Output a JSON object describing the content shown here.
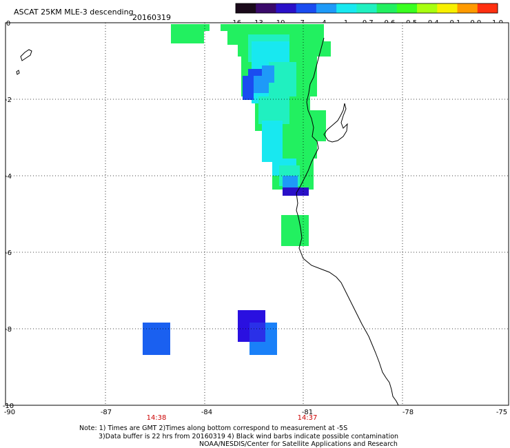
{
  "title": "ASCAT 25KM MLE-3 descending",
  "date": "20160319",
  "colorbar": {
    "labels": [
      "-16",
      "-13",
      "-10",
      "-7",
      "-4",
      "-1",
      "-0.7",
      "-0.6",
      "-0.5",
      "-0.4",
      "-0.1",
      "0.0",
      "1.0"
    ],
    "colors": [
      "#1a0a1a",
      "#3a0a6a",
      "#2a10c8",
      "#1a4cf0",
      "#1e9af8",
      "#18e8f0",
      "#20f0c0",
      "#22f060",
      "#3aff20",
      "#a8ff10",
      "#f8f000",
      "#ff9a00",
      "#ff3010"
    ]
  },
  "axes": {
    "lat_labels": [
      "0",
      "-2",
      "-4",
      "-6",
      "-8",
      "-10"
    ],
    "lon_labels": [
      "-90",
      "-87",
      "-84",
      "-81",
      "-78",
      "-75"
    ],
    "lat_range": [
      -10,
      0
    ],
    "lon_range": [
      -90,
      -75
    ],
    "grid": "dotted"
  },
  "times": [
    {
      "label": "14:38",
      "lon": -85.5
    },
    {
      "label": "14:37",
      "lon": -81.0
    }
  ],
  "notes": [
    "Note: 1) Times are GMT 2)Times along bottom correspond to measurement at -5S",
    "3)Data buffer is 22 hrs from 20160319 4) Black wind barbs indicate possible contamination",
    "NOAA/NESDIS/Center for Satellite Applications and Research"
  ]
}
